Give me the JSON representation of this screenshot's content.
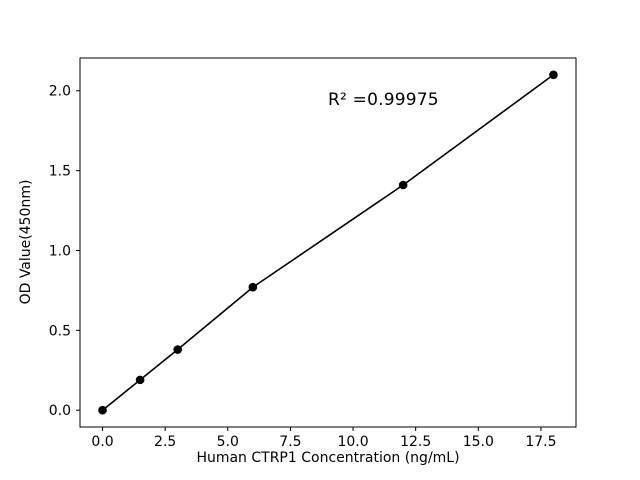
{
  "chart_data": {
    "type": "scatter",
    "title": "",
    "xlabel": "Human CTRP1 Concentration (ng/mL)",
    "ylabel": "OD Value(450nm)",
    "annotation": "R² =0.99975",
    "x": [
      0,
      1.5,
      3,
      6,
      12,
      18
    ],
    "y": [
      0.0,
      0.19,
      0.38,
      0.77,
      1.41,
      2.1
    ],
    "line": true,
    "xlim": [
      -0.9,
      18.9
    ],
    "ylim": [
      -0.105,
      2.205
    ],
    "xticks": [
      0.0,
      2.5,
      5.0,
      7.5,
      10.0,
      12.5,
      15.0,
      17.5
    ],
    "xtick_labels": [
      "0.0",
      "2.5",
      "5.0",
      "7.5",
      "10.0",
      "12.5",
      "15.0",
      "17.5"
    ],
    "yticks": [
      0.0,
      0.5,
      1.0,
      1.5,
      2.0
    ],
    "ytick_labels": [
      "0.0",
      "0.5",
      "1.0",
      "1.5",
      "2.0"
    ],
    "grid": false,
    "legend": "none",
    "marker_color": "#000000",
    "line_color": "#000000",
    "background_color": "#ffffff"
  }
}
